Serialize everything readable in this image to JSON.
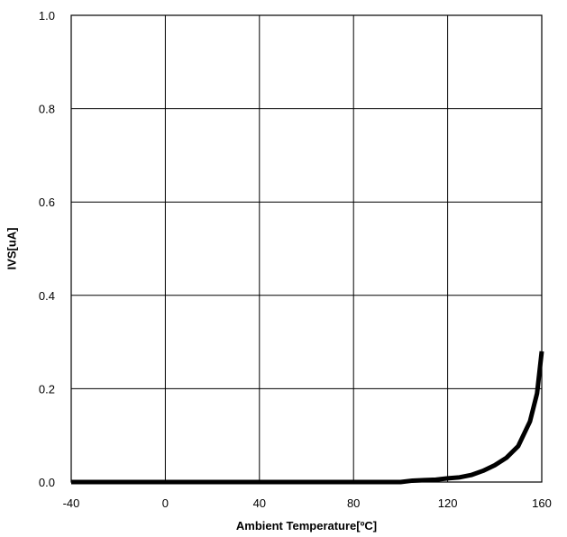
{
  "chart_data": {
    "type": "line",
    "title": "",
    "xlabel": "Ambient Temperature[ºC]",
    "ylabel": "IVS[uA]",
    "xlim": [
      -40,
      160
    ],
    "ylim": [
      0.0,
      1.0
    ],
    "xticks": [
      -40,
      0,
      40,
      80,
      120,
      160
    ],
    "xtick_labels": [
      "-40",
      "0",
      "40",
      "80",
      "120",
      "160"
    ],
    "yticks": [
      0.0,
      0.2,
      0.4,
      0.6,
      0.8,
      1.0
    ],
    "ytick_labels": [
      "0.0",
      "0.2",
      "0.4",
      "0.6",
      "0.8",
      "1.0"
    ],
    "grid": true,
    "legend": "none",
    "series": [
      {
        "color": "#000000",
        "x": [
          -40,
          -20,
          0,
          20,
          40,
          60,
          80,
          100,
          105,
          110,
          115,
          120,
          125,
          130,
          135,
          140,
          145,
          150,
          155,
          158,
          160
        ],
        "y": [
          0.0,
          0.0,
          0.0,
          0.0,
          0.0,
          0.0,
          0.0,
          0.0,
          0.003,
          0.004,
          0.005,
          0.008,
          0.01,
          0.015,
          0.024,
          0.036,
          0.052,
          0.077,
          0.13,
          0.19,
          0.28
        ]
      }
    ]
  }
}
